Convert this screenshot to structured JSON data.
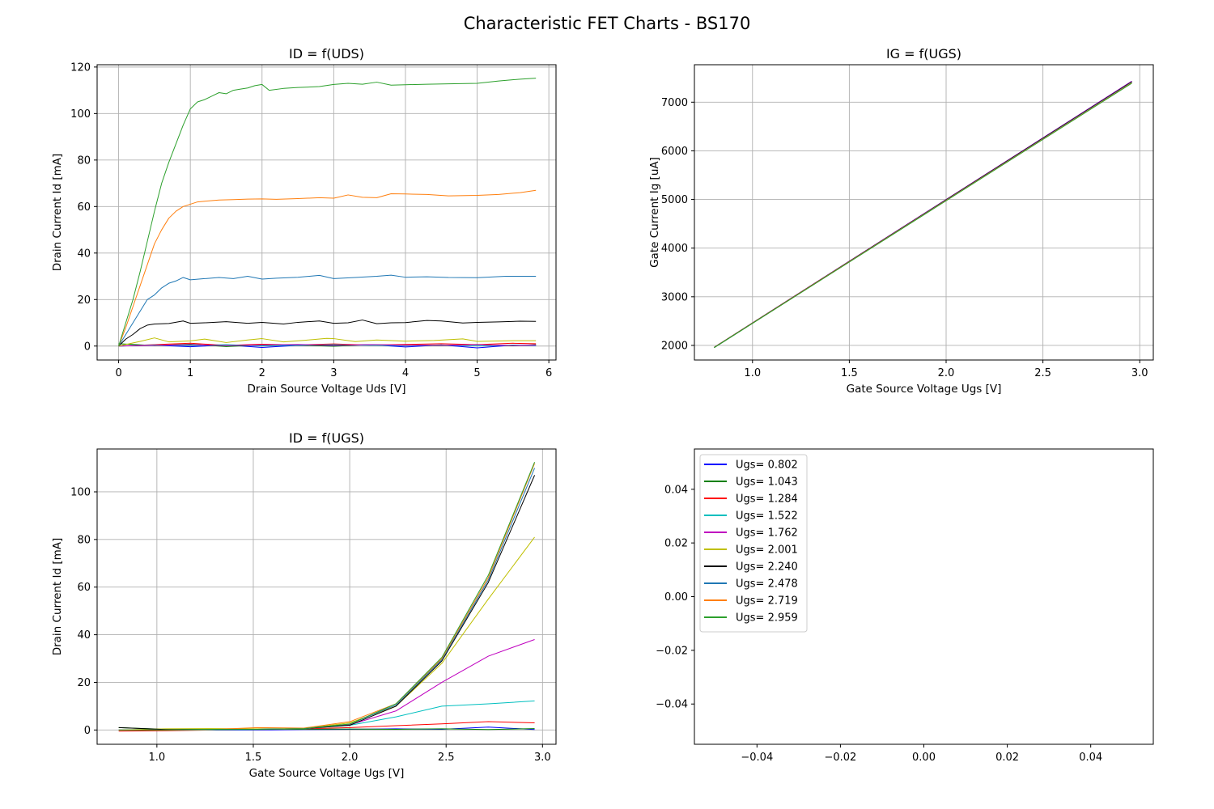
{
  "suptitle": "Characteristic FET Charts - BS170",
  "colors": {
    "grid": "#b0b0b0",
    "axes": "#000000",
    "legend_border": "#cccccc"
  },
  "chart_data": [
    {
      "id": "id_uds",
      "type": "line",
      "title": "ID = f(UDS)",
      "xlabel": "Drain Source Voltage Uds [V]",
      "ylabel": "Drain Current Id [mA]",
      "xlim": [
        -0.3,
        6.1
      ],
      "ylim": [
        -6,
        121
      ],
      "xticks": [
        0,
        1,
        2,
        3,
        4,
        5,
        6
      ],
      "yticks": [
        0,
        20,
        40,
        60,
        80,
        100,
        120
      ],
      "grid": true,
      "series": [
        {
          "color": "#0000ff",
          "x": [
            0,
            0.5,
            1,
            1.5,
            2,
            2.5,
            3,
            3.5,
            4,
            4.5,
            5,
            5.5,
            5.82
          ],
          "y": [
            0,
            0.4,
            -0.3,
            0.5,
            -0.6,
            0.3,
            0.1,
            0.6,
            -0.4,
            0.5,
            -0.8,
            0.4,
            0.2
          ]
        },
        {
          "color": "#008000",
          "x": [
            0,
            0.5,
            1,
            1.5,
            2,
            2.5,
            3,
            3.5,
            4,
            4.5,
            5,
            5.5,
            5.82
          ],
          "y": [
            1,
            0.2,
            0.8,
            -0.2,
            0.5,
            0.4,
            -0.1,
            0.6,
            0.3,
            0.2,
            0.7,
            0.1,
            0.6
          ]
        },
        {
          "color": "#ff0000",
          "x": [
            0,
            0.5,
            1,
            1.5,
            2,
            2.5,
            3,
            3.5,
            4,
            4.5,
            5,
            5.5,
            5.82
          ],
          "y": [
            0,
            0.6,
            1.2,
            0.3,
            0.8,
            0.5,
            0.9,
            0.4,
            0.7,
            1,
            0.6,
            1.2,
            1
          ]
        },
        {
          "color": "#00bfbf",
          "x": [
            0,
            0.5,
            1,
            1.5,
            2,
            2.5,
            3,
            3.5,
            4,
            4.5,
            5,
            5.5,
            5.82
          ],
          "y": [
            0,
            0.5,
            0.2,
            0.6,
            0.1,
            0.4,
            0.6,
            0.3,
            0.2,
            0.5,
            0.1,
            0.4,
            0.3
          ]
        },
        {
          "color": "#bf00bf",
          "x": [
            0,
            0.5,
            1,
            1.5,
            2,
            2.5,
            3,
            3.5,
            4,
            4.5,
            5,
            5.5,
            5.82
          ],
          "y": [
            0,
            0.3,
            0.6,
            0.2,
            0.5,
            0.7,
            0.3,
            0.6,
            0.4,
            0.3,
            0.6,
            0.2,
            0.5
          ]
        },
        {
          "color": "#bfbf00",
          "x": [
            0,
            0.3,
            0.5,
            0.7,
            1,
            1.2,
            1.5,
            1.8,
            2,
            2.3,
            2.6,
            2.9,
            3,
            3.3,
            3.6,
            4,
            4.4,
            4.8,
            5,
            5.5,
            5.82
          ],
          "y": [
            0,
            2,
            3.5,
            1.8,
            2.2,
            3,
            1.5,
            2.6,
            3.2,
            1.8,
            2.5,
            3.3,
            3.2,
            1.9,
            2.6,
            2.1,
            2.4,
            3.1,
            2,
            2.3,
            2.3
          ]
        },
        {
          "color": "#000000",
          "x": [
            0,
            0.1,
            0.2,
            0.3,
            0.4,
            0.5,
            0.7,
            0.9,
            1,
            1.2,
            1.5,
            1.8,
            2,
            2.3,
            2.5,
            2.8,
            3,
            3.2,
            3.4,
            3.6,
            3.8,
            4,
            4.3,
            4.5,
            4.8,
            5,
            5.3,
            5.6,
            5.82
          ],
          "y": [
            0,
            3,
            5,
            7.5,
            9,
            9.5,
            9.7,
            10.8,
            9.8,
            10,
            10.5,
            9.8,
            10.2,
            9.5,
            10.2,
            10.8,
            9.8,
            10,
            11.2,
            9.6,
            10,
            10.1,
            11,
            10.8,
            9.9,
            10.2,
            10.4,
            10.7,
            10.6
          ]
        },
        {
          "color": "#1f77b4",
          "x": [
            0,
            0.1,
            0.2,
            0.3,
            0.4,
            0.5,
            0.6,
            0.7,
            0.8,
            0.9,
            1,
            1.2,
            1.4,
            1.6,
            1.8,
            2,
            2.2,
            2.5,
            2.8,
            3,
            3.3,
            3.6,
            3.8,
            4,
            4.3,
            4.6,
            5,
            5.4,
            5.82
          ],
          "y": [
            0,
            5,
            10,
            15,
            20,
            22,
            25,
            27,
            28,
            29.5,
            28.5,
            29,
            29.5,
            29,
            30,
            28.8,
            29.2,
            29.6,
            30.4,
            29,
            29.5,
            30,
            30.5,
            29.6,
            29.8,
            29.5,
            29.4,
            30,
            30
          ]
        },
        {
          "color": "#ff7f0e",
          "x": [
            0,
            0.1,
            0.2,
            0.3,
            0.4,
            0.5,
            0.6,
            0.7,
            0.8,
            0.9,
            1,
            1.1,
            1.2,
            1.4,
            1.6,
            1.8,
            2,
            2.2,
            2.5,
            2.8,
            3,
            3.2,
            3.4,
            3.6,
            3.8,
            4,
            4.3,
            4.6,
            5,
            5.3,
            5.6,
            5.82
          ],
          "y": [
            0,
            8,
            17,
            26,
            35,
            44,
            50,
            55,
            58,
            60,
            61,
            62,
            62.3,
            62.8,
            63,
            63.2,
            63.3,
            63.1,
            63.4,
            63.8,
            63.6,
            65,
            64,
            63.8,
            65.5,
            65.4,
            65.2,
            64.6,
            64.8,
            65.2,
            66,
            67
          ]
        },
        {
          "color": "#2ca02c",
          "x": [
            0,
            0.1,
            0.2,
            0.3,
            0.4,
            0.5,
            0.6,
            0.7,
            0.8,
            0.9,
            1,
            1.1,
            1.2,
            1.3,
            1.4,
            1.5,
            1.6,
            1.7,
            1.8,
            1.9,
            2,
            2.1,
            2.3,
            2.5,
            2.8,
            3,
            3.2,
            3.4,
            3.6,
            3.8,
            4,
            4.3,
            4.6,
            5,
            5.3,
            5.6,
            5.82
          ],
          "y": [
            0,
            10,
            20,
            32,
            45,
            58,
            70,
            79,
            87,
            95,
            102,
            105,
            106,
            107.5,
            109,
            108.5,
            110,
            110.5,
            111,
            112,
            112.5,
            110,
            110.8,
            111.2,
            111.6,
            112.5,
            113,
            112.6,
            113.5,
            112.2,
            112.4,
            112.6,
            112.8,
            113,
            114,
            114.8,
            115.2
          ]
        }
      ]
    },
    {
      "id": "ig_ugs",
      "type": "line",
      "title": "IG = f(UGS)",
      "xlabel": "Gate Source Voltage Ugs [V]",
      "ylabel": "Gate Current Ig [uA]",
      "xlim": [
        0.7,
        3.07
      ],
      "ylim": [
        1700,
        7770
      ],
      "xticks": [
        1.0,
        1.5,
        2.0,
        2.5,
        3.0
      ],
      "yticks": [
        2000,
        3000,
        4000,
        5000,
        6000,
        7000
      ],
      "grid": true,
      "series": [
        {
          "color": "#0000ff",
          "x": [
            0.802,
            2.959
          ],
          "y": [
            1960,
            7430
          ]
        },
        {
          "color": "#008000",
          "x": [
            0.802,
            2.959
          ],
          "y": [
            1955,
            7415
          ]
        },
        {
          "color": "#ff0000",
          "x": [
            0.802,
            2.959
          ],
          "y": [
            1960,
            7425
          ]
        },
        {
          "color": "#00bfbf",
          "x": [
            0.802,
            2.959
          ],
          "y": [
            1955,
            7410
          ]
        },
        {
          "color": "#bf00bf",
          "x": [
            0.802,
            2.959
          ],
          "y": [
            1960,
            7430
          ]
        },
        {
          "color": "#bfbf00",
          "x": [
            0.802,
            2.959
          ],
          "y": [
            1955,
            7405
          ]
        },
        {
          "color": "#000000",
          "x": [
            0.802,
            2.959
          ],
          "y": [
            1960,
            7420
          ]
        },
        {
          "color": "#1f77b4",
          "x": [
            0.802,
            2.959
          ],
          "y": [
            1955,
            7410
          ]
        },
        {
          "color": "#ff7f0e",
          "x": [
            0.802,
            2.959
          ],
          "y": [
            1958,
            7400
          ]
        },
        {
          "color": "#2ca02c",
          "x": [
            0.802,
            2.959
          ],
          "y": [
            1955,
            7390
          ]
        }
      ]
    },
    {
      "id": "id_ugs",
      "type": "line",
      "title": "ID = f(UGS)",
      "xlabel": "Gate Source Voltage Ugs [V]",
      "ylabel": "Drain Current Id [mA]",
      "xlim": [
        0.69,
        3.07
      ],
      "ylim": [
        -6,
        118
      ],
      "xticks": [
        1.0,
        1.5,
        2.0,
        2.5,
        3.0
      ],
      "yticks": [
        0,
        20,
        40,
        60,
        80,
        100
      ],
      "grid": true,
      "series": [
        {
          "color": "#0000ff",
          "x": [
            0.802,
            1.043,
            1.284,
            1.522,
            1.762,
            2.001,
            2.24,
            2.478,
            2.719,
            2.959
          ],
          "y": [
            0,
            0,
            0,
            0,
            0.2,
            0.3,
            0.5,
            0.3,
            1.2,
            0.2
          ]
        },
        {
          "color": "#008000",
          "x": [
            0.802,
            1.043,
            1.284,
            1.522,
            1.762,
            2.001,
            2.24,
            2.478,
            2.719,
            2.959
          ],
          "y": [
            1,
            0.3,
            0.2,
            0.3,
            0.3,
            0.4,
            0.3,
            0.5,
            0.2,
            0.6
          ]
        },
        {
          "color": "#ff0000",
          "x": [
            0.802,
            1.043,
            1.284,
            1.522,
            1.762,
            2.001,
            2.24,
            2.478,
            2.719,
            2.959
          ],
          "y": [
            -0.5,
            -0.3,
            0,
            0.2,
            0.5,
            1,
            1.8,
            2.6,
            3.5,
            3
          ]
        },
        {
          "color": "#00bfbf",
          "x": [
            0.802,
            1.043,
            1.284,
            1.522,
            1.762,
            2.001,
            2.24,
            2.478,
            2.719,
            2.959
          ],
          "y": [
            0,
            0,
            0,
            0.2,
            0.5,
            2,
            5.5,
            10,
            11,
            12.2
          ]
        },
        {
          "color": "#bf00bf",
          "x": [
            0.802,
            1.043,
            1.284,
            1.522,
            1.762,
            2.001,
            2.24,
            2.478,
            2.719,
            2.959
          ],
          "y": [
            0,
            0,
            0.2,
            0.3,
            0.6,
            2.2,
            8,
            20,
            31,
            38
          ]
        },
        {
          "color": "#bfbf00",
          "x": [
            0.802,
            1.043,
            1.284,
            1.522,
            1.762,
            2.001,
            2.24,
            2.478,
            2.719,
            2.959
          ],
          "y": [
            0,
            0.5,
            0.6,
            0.5,
            0.6,
            3,
            10,
            28,
            55,
            81
          ]
        },
        {
          "color": "#000000",
          "x": [
            0.802,
            1.043,
            1.284,
            1.522,
            1.762,
            2.001,
            2.24,
            2.478,
            2.719,
            2.959
          ],
          "y": [
            1,
            0.2,
            0.2,
            0.3,
            0.6,
            2,
            10,
            29,
            62,
            107
          ]
        },
        {
          "color": "#1f77b4",
          "x": [
            0.802,
            1.043,
            1.284,
            1.522,
            1.762,
            2.001,
            2.24,
            2.478,
            2.719,
            2.959
          ],
          "y": [
            0,
            0,
            0.2,
            0.3,
            0.6,
            2.5,
            10.5,
            29.5,
            63,
            110
          ]
        },
        {
          "color": "#ff7f0e",
          "x": [
            0.802,
            1.043,
            1.284,
            1.522,
            1.762,
            2.001,
            2.24,
            2.478,
            2.719,
            2.959
          ],
          "y": [
            0,
            0,
            0.2,
            1,
            0.8,
            3.5,
            11,
            30,
            64,
            112
          ]
        },
        {
          "color": "#2ca02c",
          "x": [
            0.802,
            1.043,
            1.284,
            1.522,
            1.762,
            2.001,
            2.24,
            2.478,
            2.719,
            2.959
          ],
          "y": [
            0,
            0,
            0.3,
            0.3,
            0.6,
            2.5,
            11,
            30.5,
            65,
            112.5
          ]
        }
      ]
    },
    {
      "id": "legend_panel",
      "type": "line",
      "title": "",
      "xlabel": "",
      "ylabel": "",
      "xlim": [
        -0.055,
        0.055
      ],
      "ylim": [
        -0.055,
        0.055
      ],
      "xticks": [
        -0.04,
        -0.02,
        0.0,
        0.02,
        0.04
      ],
      "yticks": [
        -0.04,
        -0.02,
        0.0,
        0.02,
        0.04
      ],
      "xtick_labels": [
        "−0.04",
        "−0.02",
        "0.00",
        "0.02",
        "0.04"
      ],
      "ytick_labels": [
        "−0.04",
        "−0.02",
        "0.00",
        "0.02",
        "0.04"
      ],
      "grid": false,
      "legend_placement": "upper-left",
      "legend": [
        {
          "label": "Ugs= 0.802",
          "color": "#0000ff"
        },
        {
          "label": "Ugs= 1.043",
          "color": "#008000"
        },
        {
          "label": "Ugs= 1.284",
          "color": "#ff0000"
        },
        {
          "label": "Ugs= 1.522",
          "color": "#00bfbf"
        },
        {
          "label": "Ugs= 1.762",
          "color": "#bf00bf"
        },
        {
          "label": "Ugs= 2.001",
          "color": "#bfbf00"
        },
        {
          "label": "Ugs= 2.240",
          "color": "#000000"
        },
        {
          "label": "Ugs= 2.478",
          "color": "#1f77b4"
        },
        {
          "label": "Ugs= 2.719",
          "color": "#ff7f0e"
        },
        {
          "label": "Ugs= 2.959",
          "color": "#2ca02c"
        }
      ],
      "series": []
    }
  ]
}
